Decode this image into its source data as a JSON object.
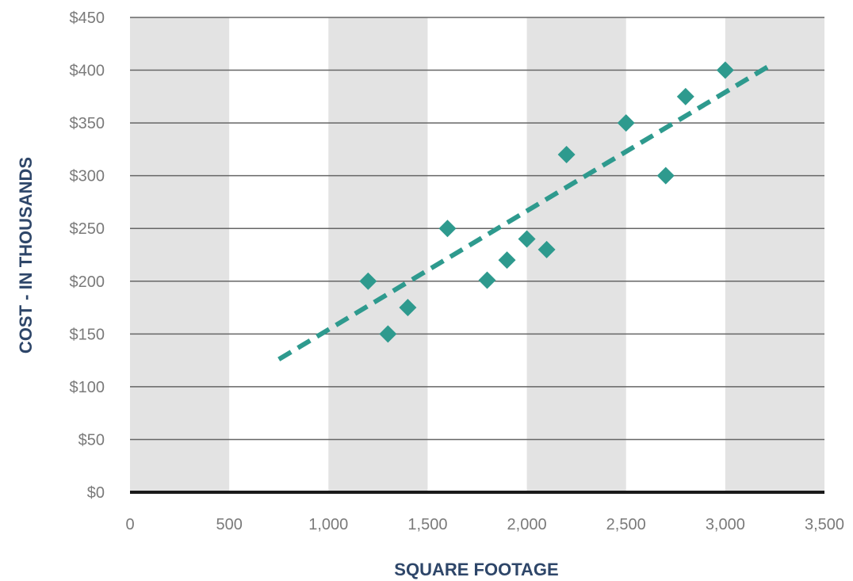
{
  "chart_data": {
    "type": "scatter",
    "title": "",
    "xlabel": "SQUARE FOOTAGE",
    "ylabel": "COST - IN THOUSANDS",
    "xlim": [
      0,
      3500
    ],
    "ylim": [
      0,
      450
    ],
    "x_ticks": [
      0,
      500,
      1000,
      1500,
      2000,
      2500,
      3000,
      3500
    ],
    "x_tick_labels": [
      "0",
      "500",
      "1,000",
      "1,500",
      "2,000",
      "2,500",
      "3,000",
      "3,500"
    ],
    "y_ticks": [
      0,
      50,
      100,
      150,
      200,
      250,
      300,
      350,
      400,
      450
    ],
    "y_tick_labels": [
      "$0",
      "$50",
      "$100",
      "$150",
      "$200",
      "$250",
      "$300",
      "$350",
      "$400",
      "$450"
    ],
    "grid": "horizontal",
    "background_bands": "alternating vertical bands every 500 (shaded 0-500, 1000-1500, 2000-2500, 3000-3500)",
    "series": [
      {
        "marker": "diamond",
        "color": "#2e9a8e",
        "points": [
          {
            "x": 1200,
            "y": 200
          },
          {
            "x": 1300,
            "y": 150
          },
          {
            "x": 1400,
            "y": 175
          },
          {
            "x": 1600,
            "y": 250
          },
          {
            "x": 1800,
            "y": 201
          },
          {
            "x": 1900,
            "y": 220
          },
          {
            "x": 2000,
            "y": 240
          },
          {
            "x": 2100,
            "y": 230
          },
          {
            "x": 2200,
            "y": 320
          },
          {
            "x": 2500,
            "y": 350
          },
          {
            "x": 2700,
            "y": 300
          },
          {
            "x": 2800,
            "y": 375
          },
          {
            "x": 3000,
            "y": 400
          }
        ]
      }
    ],
    "trendline": {
      "style": "dashed",
      "color": "#2e9a8e",
      "start": {
        "x": 750,
        "y": 126
      },
      "end": {
        "x": 3230,
        "y": 405
      }
    },
    "colors": {
      "band": "#e3e3e3",
      "gridline": "#666666",
      "baseline": "#1a1a1a",
      "axis_title": "#2e4669",
      "tick_text": "#7a7a7a"
    }
  }
}
